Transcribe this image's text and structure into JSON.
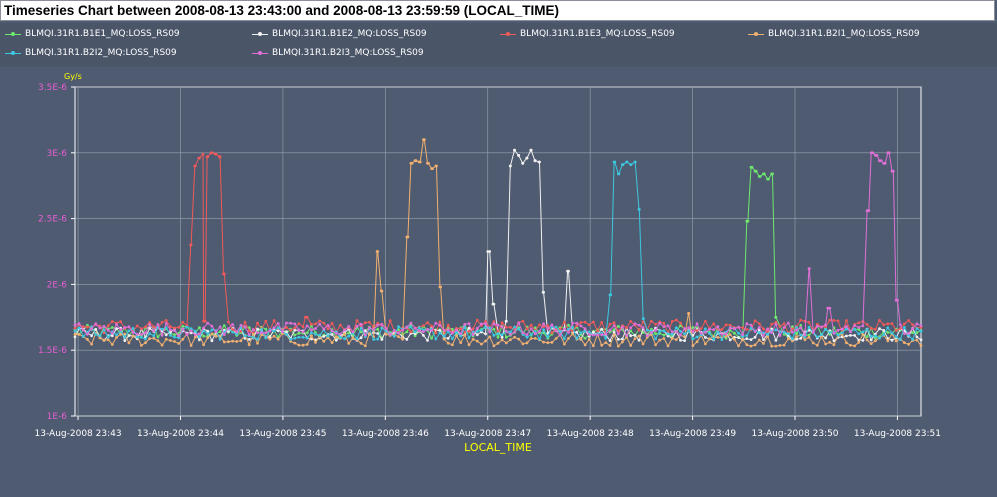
{
  "title": "Timeseries Chart between 2008-08-13 23:43:00 and 2008-08-13 23:59:59 (LOCAL_TIME)",
  "colors": {
    "background": "#4f5b70",
    "plot_bg": "#4f5b70",
    "grid": "#9aa3b3",
    "axis_tick_label": "#e85fd4",
    "x_tick_label": "#ffffff",
    "xlabel": "#ffff00",
    "unit": "#ffff00"
  },
  "legend": [
    {
      "name": "BLMQI.31R1.B1E1_MQ:LOSS_RS09",
      "color": "#6ee86e"
    },
    {
      "name": "BLMQI.31R1.B1E2_MQ:LOSS_RS09",
      "color": "#f0f0f0"
    },
    {
      "name": "BLMQI.31R1.B1E3_MQ:LOSS_RS09",
      "color": "#f05a5a"
    },
    {
      "name": "BLMQI.31R1.B2I1_MQ:LOSS_RS09",
      "color": "#f0b070"
    },
    {
      "name": "BLMQI.31R1.B2I2_MQ:LOSS_RS09",
      "color": "#3cc8e0"
    },
    {
      "name": "BLMQI.31R1.B2I3_MQ:LOSS_RS09",
      "color": "#e070d8"
    }
  ],
  "chart_data": {
    "type": "line",
    "title": "Timeseries Chart between 2008-08-13 23:43:00 and 2008-08-13 23:59:59 (LOCAL_TIME)",
    "xlabel": "LOCAL_TIME",
    "ylabel": "",
    "unit": "Gy/s",
    "x_ticks": [
      "13-Aug-2008 23:43",
      "13-Aug-2008 23:44",
      "13-Aug-2008 23:45",
      "13-Aug-2008 23:46",
      "13-Aug-2008 23:47",
      "13-Aug-2008 23:48",
      "13-Aug-2008 23:49",
      "13-Aug-2008 23:50",
      "13-Aug-2008 23:51"
    ],
    "y_ticks": [
      "1E-6",
      "1.5E-6",
      "2E-6",
      "2.5E-6",
      "3E-6",
      "3.5E-6"
    ],
    "y_tick_values": [
      1e-06,
      1.5e-06,
      2e-06,
      2.5e-06,
      3e-06,
      3.5e-06
    ],
    "ylim": [
      1e-06,
      3.5e-06
    ],
    "xlim_minutes": [
      -0.03,
      8.23
    ],
    "x_axis_note": "x values are minutes after 13-Aug-2008 23:43",
    "grid": true,
    "legend_position": "top",
    "baselines": [
      1.64e-06,
      1.62e-06,
      1.68e-06,
      1.58e-06,
      1.63e-06,
      1.66e-06
    ],
    "series": [
      {
        "name": "BLMQI.31R1.B1E1_MQ:LOSS_RS09",
        "peaks": [
          [
            6.54,
            2.48e-06
          ],
          [
            6.58,
            2.89e-06
          ],
          [
            6.62,
            2.86e-06
          ],
          [
            6.66,
            2.82e-06
          ],
          [
            6.7,
            2.84e-06
          ],
          [
            6.74,
            2.8e-06
          ],
          [
            6.78,
            2.84e-06
          ],
          [
            6.81,
            1.75e-06
          ]
        ]
      },
      {
        "name": "BLMQI.31R1.B1E2_MQ:LOSS_RS09",
        "peaks": [
          [
            4.0,
            2.25e-06
          ],
          [
            4.05,
            1.85e-06
          ],
          [
            4.18,
            1.72e-06
          ],
          [
            4.22,
            2.9e-06
          ],
          [
            4.26,
            3.02e-06
          ],
          [
            4.3,
            2.98e-06
          ],
          [
            4.34,
            2.92e-06
          ],
          [
            4.38,
            2.96e-06
          ],
          [
            4.42,
            3.02e-06
          ],
          [
            4.46,
            2.94e-06
          ],
          [
            4.5,
            2.93e-06
          ],
          [
            4.54,
            1.94e-06
          ],
          [
            4.78,
            2.1e-06
          ]
        ]
      },
      {
        "name": "BLMQI.31R1.B1E3_MQ:LOSS_RS09",
        "peaks": [
          [
            1.1,
            2.3e-06
          ],
          [
            1.14,
            2.9e-06
          ],
          [
            1.18,
            2.96e-06
          ],
          [
            1.22,
            2.99e-06
          ],
          [
            1.26,
            2.97e-06
          ],
          [
            1.3,
            3e-06
          ],
          [
            1.34,
            2.99e-06
          ],
          [
            1.38,
            2.97e-06
          ],
          [
            1.42,
            2.08e-06
          ],
          [
            1.24,
            1.72e-06
          ],
          [
            2.22,
            1.75e-06
          ]
        ]
      },
      {
        "name": "BLMQI.31R1.B2I1_MQ:LOSS_RS09",
        "peaks": [
          [
            2.92,
            2.25e-06
          ],
          [
            2.96,
            1.95e-06
          ],
          [
            3.22,
            2.36e-06
          ],
          [
            3.26,
            2.92e-06
          ],
          [
            3.3,
            2.94e-06
          ],
          [
            3.34,
            2.93e-06
          ],
          [
            3.38,
            3.1e-06
          ],
          [
            3.42,
            2.92e-06
          ],
          [
            3.46,
            2.88e-06
          ],
          [
            3.5,
            2.9e-06
          ],
          [
            3.54,
            1.98e-06
          ],
          [
            5.96,
            1.78e-06
          ]
        ]
      },
      {
        "name": "BLMQI.31R1.B2I2_MQ:LOSS_RS09",
        "peaks": [
          [
            5.2,
            1.92e-06
          ],
          [
            5.24,
            2.93e-06
          ],
          [
            5.28,
            2.84e-06
          ],
          [
            5.32,
            2.91e-06
          ],
          [
            5.36,
            2.93e-06
          ],
          [
            5.4,
            2.91e-06
          ],
          [
            5.44,
            2.93e-06
          ],
          [
            5.48,
            2.57e-06
          ],
          [
            5.52,
            1.74e-06
          ]
        ]
      },
      {
        "name": "BLMQI.31R1.B2I3_MQ:LOSS_RS09",
        "peaks": [
          [
            7.14,
            2.12e-06
          ],
          [
            7.32,
            1.82e-06
          ],
          [
            7.72,
            2.56e-06
          ],
          [
            7.76,
            3e-06
          ],
          [
            7.8,
            2.98e-06
          ],
          [
            7.84,
            2.94e-06
          ],
          [
            7.88,
            2.92e-06
          ],
          [
            7.92,
            3e-06
          ],
          [
            7.96,
            2.86e-06
          ],
          [
            8.0,
            1.88e-06
          ]
        ]
      }
    ]
  }
}
